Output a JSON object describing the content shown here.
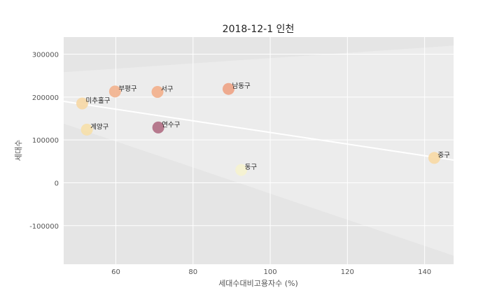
{
  "chart_data": {
    "type": "scatter",
    "title": "2018-12-1 인천",
    "xlabel": "세대수대비고용자수 (%)",
    "ylabel": "세대수",
    "xlim": [
      46.5,
      147.5
    ],
    "ylim": [
      -190000,
      340000
    ],
    "xticks": [
      60,
      80,
      100,
      120,
      140
    ],
    "yticks": [
      -100000,
      0,
      100000,
      200000,
      300000
    ],
    "grid": true,
    "points": [
      {
        "label": "부평구",
        "x": 59.8,
        "y": 213000,
        "color": "#f2b38f"
      },
      {
        "label": "서구",
        "x": 70.8,
        "y": 212000,
        "color": "#f2b08c"
      },
      {
        "label": "남동구",
        "x": 89.2,
        "y": 219000,
        "color": "#eea487"
      },
      {
        "label": "미추홀구",
        "x": 51.3,
        "y": 185000,
        "color": "#f6d8a6"
      },
      {
        "label": "계양구",
        "x": 52.5,
        "y": 124000,
        "color": "#f6dfaa"
      },
      {
        "label": "연수구",
        "x": 71.0,
        "y": 129000,
        "color": "#b16f84"
      },
      {
        "label": "동구",
        "x": 92.5,
        "y": 30000,
        "color": "#f5f2cf"
      },
      {
        "label": "중구",
        "x": 142.5,
        "y": 58000,
        "color": "#f7d9a5"
      }
    ],
    "regression": {
      "x": [
        46.5,
        147.5
      ],
      "y": [
        190000,
        53000
      ]
    },
    "confidence_band": {
      "x": [
        46.5,
        147.5
      ],
      "upper": [
        258000,
        320000
      ],
      "lower": [
        138000,
        -170000
      ]
    }
  }
}
